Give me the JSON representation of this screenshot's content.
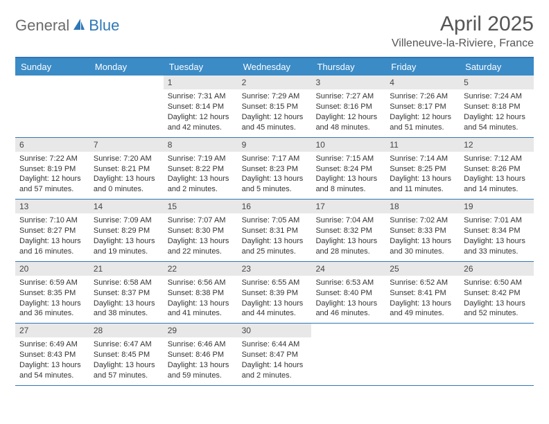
{
  "brand": {
    "part1": "General",
    "part2": "Blue"
  },
  "title": "April 2025",
  "location": "Villeneuve-la-Riviere, France",
  "colors": {
    "header_bg": "#3b8bc6",
    "border": "#2f77b6",
    "daybar": "#e8e8e8",
    "text": "#333333",
    "logo_gray": "#6b6b6b",
    "logo_blue": "#2f77b6"
  },
  "day_names": [
    "Sunday",
    "Monday",
    "Tuesday",
    "Wednesday",
    "Thursday",
    "Friday",
    "Saturday"
  ],
  "weeks": [
    [
      {
        "day": "",
        "sunrise": "",
        "sunset": "",
        "daylight": ""
      },
      {
        "day": "",
        "sunrise": "",
        "sunset": "",
        "daylight": ""
      },
      {
        "day": "1",
        "sunrise": "Sunrise: 7:31 AM",
        "sunset": "Sunset: 8:14 PM",
        "daylight": "Daylight: 12 hours and 42 minutes."
      },
      {
        "day": "2",
        "sunrise": "Sunrise: 7:29 AM",
        "sunset": "Sunset: 8:15 PM",
        "daylight": "Daylight: 12 hours and 45 minutes."
      },
      {
        "day": "3",
        "sunrise": "Sunrise: 7:27 AM",
        "sunset": "Sunset: 8:16 PM",
        "daylight": "Daylight: 12 hours and 48 minutes."
      },
      {
        "day": "4",
        "sunrise": "Sunrise: 7:26 AM",
        "sunset": "Sunset: 8:17 PM",
        "daylight": "Daylight: 12 hours and 51 minutes."
      },
      {
        "day": "5",
        "sunrise": "Sunrise: 7:24 AM",
        "sunset": "Sunset: 8:18 PM",
        "daylight": "Daylight: 12 hours and 54 minutes."
      }
    ],
    [
      {
        "day": "6",
        "sunrise": "Sunrise: 7:22 AM",
        "sunset": "Sunset: 8:19 PM",
        "daylight": "Daylight: 12 hours and 57 minutes."
      },
      {
        "day": "7",
        "sunrise": "Sunrise: 7:20 AM",
        "sunset": "Sunset: 8:21 PM",
        "daylight": "Daylight: 13 hours and 0 minutes."
      },
      {
        "day": "8",
        "sunrise": "Sunrise: 7:19 AM",
        "sunset": "Sunset: 8:22 PM",
        "daylight": "Daylight: 13 hours and 2 minutes."
      },
      {
        "day": "9",
        "sunrise": "Sunrise: 7:17 AM",
        "sunset": "Sunset: 8:23 PM",
        "daylight": "Daylight: 13 hours and 5 minutes."
      },
      {
        "day": "10",
        "sunrise": "Sunrise: 7:15 AM",
        "sunset": "Sunset: 8:24 PM",
        "daylight": "Daylight: 13 hours and 8 minutes."
      },
      {
        "day": "11",
        "sunrise": "Sunrise: 7:14 AM",
        "sunset": "Sunset: 8:25 PM",
        "daylight": "Daylight: 13 hours and 11 minutes."
      },
      {
        "day": "12",
        "sunrise": "Sunrise: 7:12 AM",
        "sunset": "Sunset: 8:26 PM",
        "daylight": "Daylight: 13 hours and 14 minutes."
      }
    ],
    [
      {
        "day": "13",
        "sunrise": "Sunrise: 7:10 AM",
        "sunset": "Sunset: 8:27 PM",
        "daylight": "Daylight: 13 hours and 16 minutes."
      },
      {
        "day": "14",
        "sunrise": "Sunrise: 7:09 AM",
        "sunset": "Sunset: 8:29 PM",
        "daylight": "Daylight: 13 hours and 19 minutes."
      },
      {
        "day": "15",
        "sunrise": "Sunrise: 7:07 AM",
        "sunset": "Sunset: 8:30 PM",
        "daylight": "Daylight: 13 hours and 22 minutes."
      },
      {
        "day": "16",
        "sunrise": "Sunrise: 7:05 AM",
        "sunset": "Sunset: 8:31 PM",
        "daylight": "Daylight: 13 hours and 25 minutes."
      },
      {
        "day": "17",
        "sunrise": "Sunrise: 7:04 AM",
        "sunset": "Sunset: 8:32 PM",
        "daylight": "Daylight: 13 hours and 28 minutes."
      },
      {
        "day": "18",
        "sunrise": "Sunrise: 7:02 AM",
        "sunset": "Sunset: 8:33 PM",
        "daylight": "Daylight: 13 hours and 30 minutes."
      },
      {
        "day": "19",
        "sunrise": "Sunrise: 7:01 AM",
        "sunset": "Sunset: 8:34 PM",
        "daylight": "Daylight: 13 hours and 33 minutes."
      }
    ],
    [
      {
        "day": "20",
        "sunrise": "Sunrise: 6:59 AM",
        "sunset": "Sunset: 8:35 PM",
        "daylight": "Daylight: 13 hours and 36 minutes."
      },
      {
        "day": "21",
        "sunrise": "Sunrise: 6:58 AM",
        "sunset": "Sunset: 8:37 PM",
        "daylight": "Daylight: 13 hours and 38 minutes."
      },
      {
        "day": "22",
        "sunrise": "Sunrise: 6:56 AM",
        "sunset": "Sunset: 8:38 PM",
        "daylight": "Daylight: 13 hours and 41 minutes."
      },
      {
        "day": "23",
        "sunrise": "Sunrise: 6:55 AM",
        "sunset": "Sunset: 8:39 PM",
        "daylight": "Daylight: 13 hours and 44 minutes."
      },
      {
        "day": "24",
        "sunrise": "Sunrise: 6:53 AM",
        "sunset": "Sunset: 8:40 PM",
        "daylight": "Daylight: 13 hours and 46 minutes."
      },
      {
        "day": "25",
        "sunrise": "Sunrise: 6:52 AM",
        "sunset": "Sunset: 8:41 PM",
        "daylight": "Daylight: 13 hours and 49 minutes."
      },
      {
        "day": "26",
        "sunrise": "Sunrise: 6:50 AM",
        "sunset": "Sunset: 8:42 PM",
        "daylight": "Daylight: 13 hours and 52 minutes."
      }
    ],
    [
      {
        "day": "27",
        "sunrise": "Sunrise: 6:49 AM",
        "sunset": "Sunset: 8:43 PM",
        "daylight": "Daylight: 13 hours and 54 minutes."
      },
      {
        "day": "28",
        "sunrise": "Sunrise: 6:47 AM",
        "sunset": "Sunset: 8:45 PM",
        "daylight": "Daylight: 13 hours and 57 minutes."
      },
      {
        "day": "29",
        "sunrise": "Sunrise: 6:46 AM",
        "sunset": "Sunset: 8:46 PM",
        "daylight": "Daylight: 13 hours and 59 minutes."
      },
      {
        "day": "30",
        "sunrise": "Sunrise: 6:44 AM",
        "sunset": "Sunset: 8:47 PM",
        "daylight": "Daylight: 14 hours and 2 minutes."
      },
      {
        "day": "",
        "sunrise": "",
        "sunset": "",
        "daylight": ""
      },
      {
        "day": "",
        "sunrise": "",
        "sunset": "",
        "daylight": ""
      },
      {
        "day": "",
        "sunrise": "",
        "sunset": "",
        "daylight": ""
      }
    ]
  ]
}
